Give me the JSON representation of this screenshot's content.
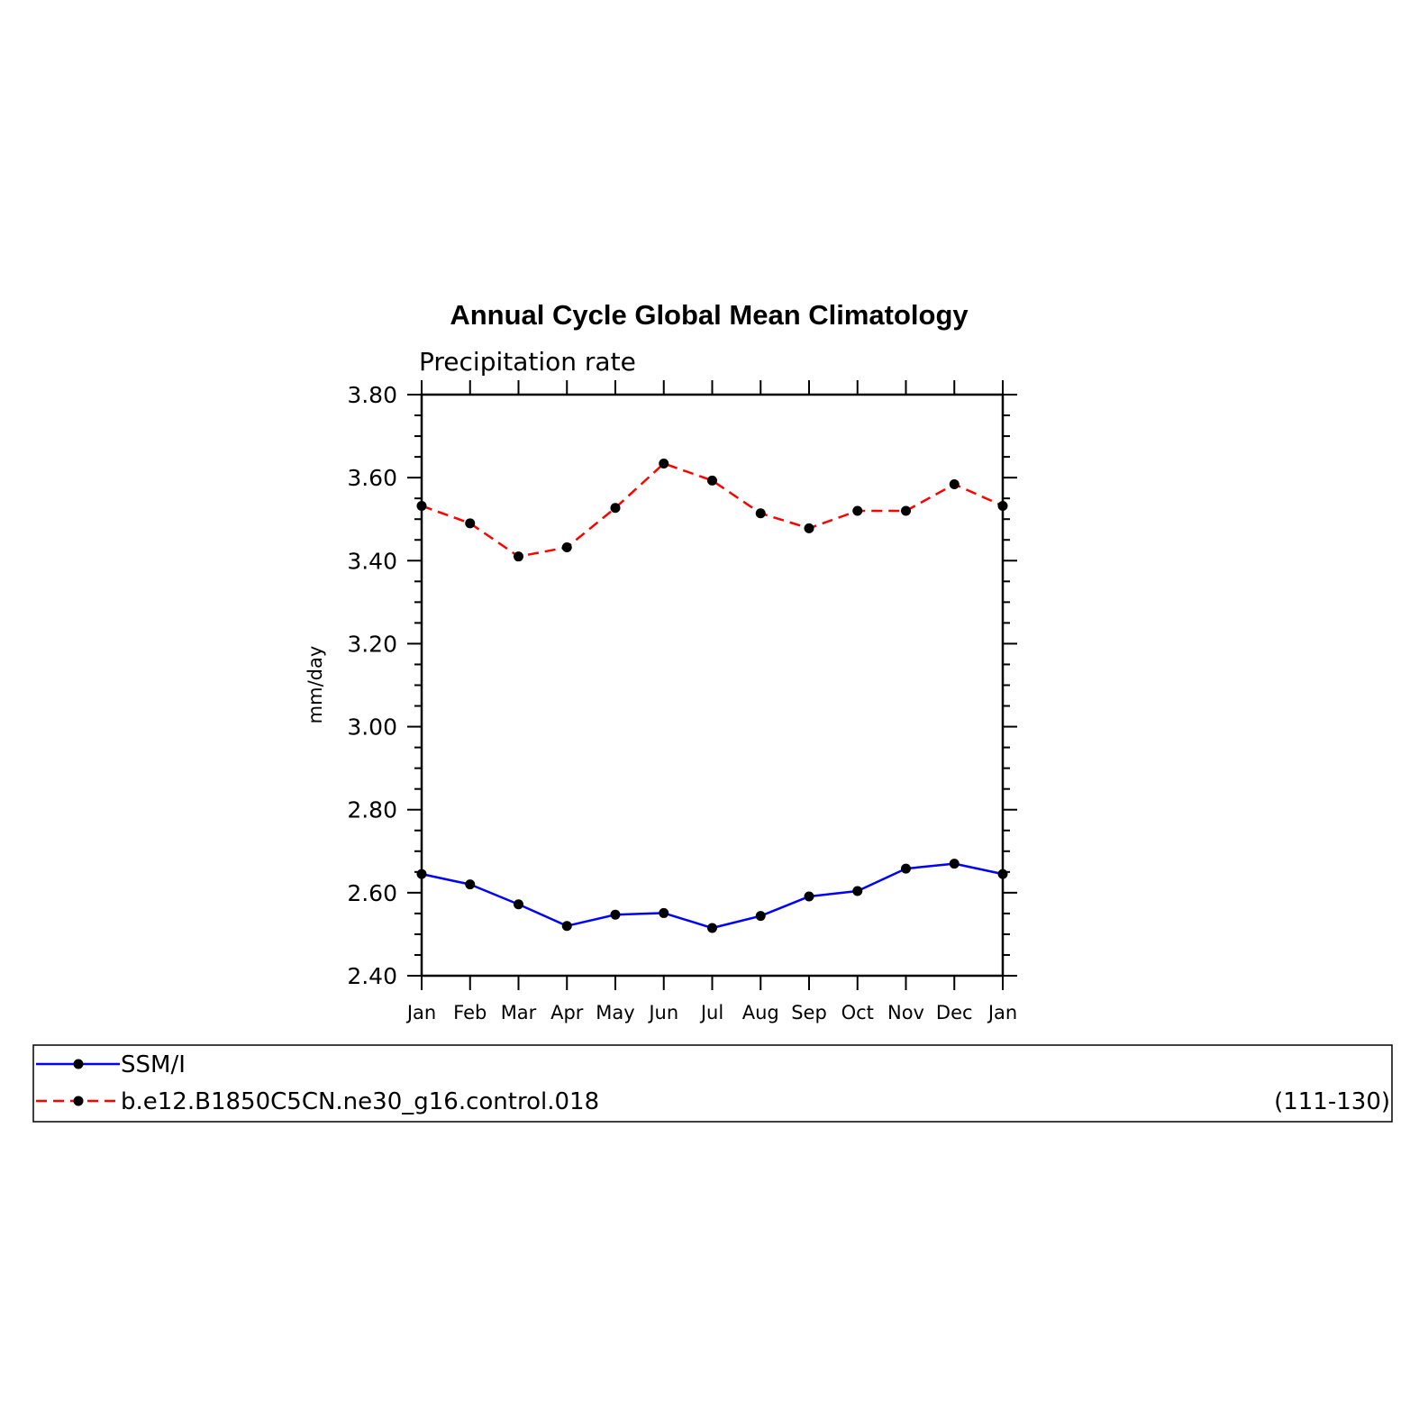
{
  "chart_data": {
    "type": "line",
    "title": "Annual Cycle Global Mean Climatology",
    "subtitle": "Precipitation rate",
    "xlabel": "",
    "ylabel": "mm/day",
    "ylim": [
      2.4,
      3.8
    ],
    "yticks": [
      "2.40",
      "2.60",
      "2.80",
      "3.00",
      "3.20",
      "3.40",
      "3.60",
      "3.80"
    ],
    "categories": [
      "Jan",
      "Feb",
      "Mar",
      "Apr",
      "May",
      "Jun",
      "Jul",
      "Aug",
      "Sep",
      "Oct",
      "Nov",
      "Dec",
      "Jan"
    ],
    "grid": false,
    "legend_position": "bottom",
    "series": [
      {
        "name": "SSM/I",
        "color": "#0000ff",
        "dash": "solid",
        "marker": "filled-circle",
        "values": [
          2.645,
          2.62,
          2.572,
          2.52,
          2.547,
          2.551,
          2.515,
          2.544,
          2.591,
          2.604,
          2.658,
          2.67,
          2.645
        ]
      },
      {
        "name": "b.e12.B1850C5CN.ne30_g16.control.018",
        "color": "#ff0000",
        "dash": "dashed",
        "marker": "filled-circle",
        "values": [
          3.532,
          3.49,
          3.41,
          3.432,
          3.527,
          3.634,
          3.593,
          3.514,
          3.478,
          3.52,
          3.52,
          3.584,
          3.532
        ]
      }
    ],
    "legend": {
      "entries": [
        {
          "label": "SSM/I",
          "note": ""
        },
        {
          "label": "b.e12.B1850C5CN.ne30_g16.control.018",
          "note": "(111-130)"
        }
      ]
    }
  }
}
